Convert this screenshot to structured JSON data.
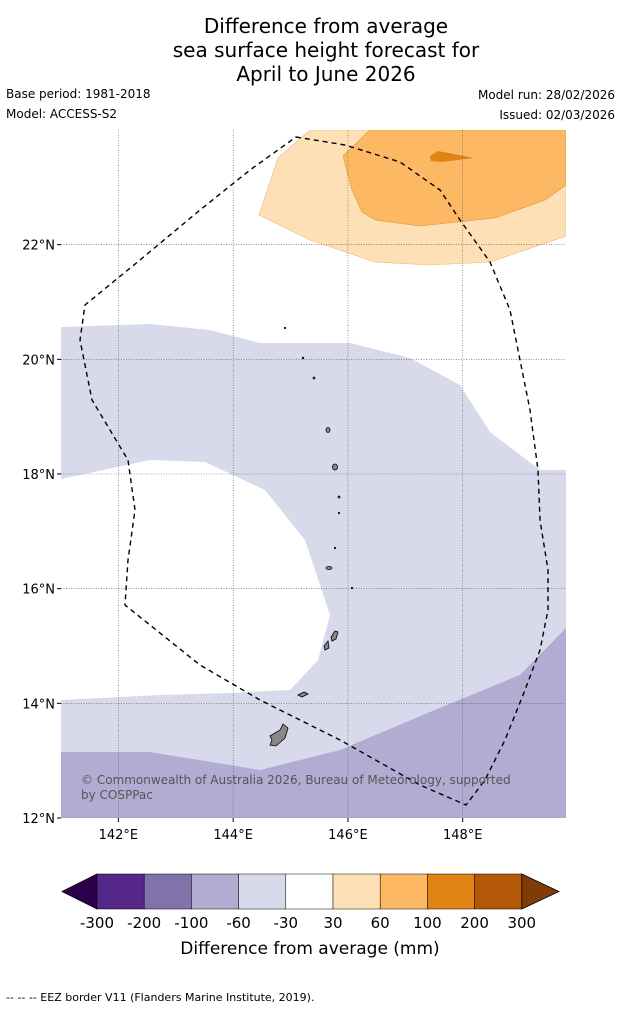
{
  "title": {
    "line1": "Difference from average",
    "line2": "sea surface height forecast for",
    "line3": "April to June 2026"
  },
  "info": {
    "base_period": "Base period: 1981-2018",
    "model": "Model: ACCESS-S2",
    "model_run": "Model run: 28/02/2026",
    "issued": "Issued: 02/03/2026"
  },
  "map": {
    "lon_range": [
      141,
      149.8
    ],
    "lat_range": [
      12,
      24
    ],
    "lat_ticks": [
      {
        "value": 22,
        "label": "22°N"
      },
      {
        "value": 20,
        "label": "20°N"
      },
      {
        "value": 18,
        "label": "18°N"
      },
      {
        "value": 16,
        "label": "16°N"
      },
      {
        "value": 14,
        "label": "14°N"
      },
      {
        "value": 12,
        "label": "12°N"
      }
    ],
    "lon_ticks": [
      {
        "value": 142,
        "label": "142°E"
      },
      {
        "value": 144,
        "label": "144°E"
      },
      {
        "value": 146,
        "label": "146°E"
      },
      {
        "value": 148,
        "label": "148°E"
      }
    ],
    "grid": true,
    "copyright": {
      "line1": "© Commonwealth of Australia 2026, Bureau of Meteorology, supported",
      "line2": "by COSPPac"
    }
  },
  "colorbar": {
    "ticks": [
      "-300",
      "-200",
      "-100",
      "-60",
      "-30",
      "30",
      "60",
      "100",
      "200",
      "300"
    ],
    "colors": [
      "#2d004b",
      "#542788",
      "#8073ac",
      "#b2abd2",
      "#d8daeb",
      "#ffffff",
      "#fee0b6",
      "#fdb863",
      "#e08214",
      "#b35806",
      "#7f3b08"
    ],
    "label": "Difference from average (mm)"
  },
  "footnote": "-- -- -- EEZ border V11 (Flanders Marine Institute, 2019)."
}
